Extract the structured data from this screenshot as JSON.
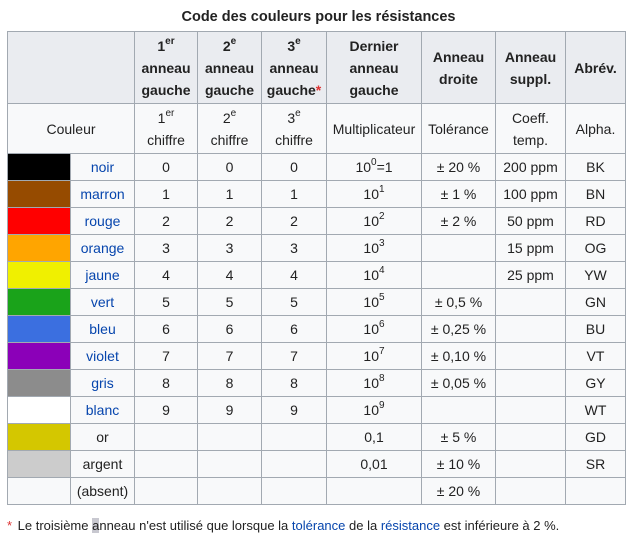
{
  "caption": "Code des couleurs pour les résistances",
  "header": {
    "col1": {
      "num": "1",
      "sup": "er",
      "rest1": "anneau",
      "rest2": "gauche"
    },
    "col2": {
      "num": "2",
      "sup": "e",
      "rest1": "anneau",
      "rest2": "gauche"
    },
    "col3": {
      "num": "3",
      "sup": "e",
      "rest1": "anneau",
      "rest2": "gauche",
      "star": "*"
    },
    "col4": {
      "l1": "Dernier",
      "l2": "anneau",
      "l3": "gauche"
    },
    "col5": {
      "l1": "Anneau",
      "l2": "droite"
    },
    "col6": {
      "l1": "Anneau",
      "l2": "suppl."
    },
    "col7": "Abrév."
  },
  "subheader": {
    "couleur": "Couleur",
    "c1": {
      "num": "1",
      "sup": "er",
      "rest": "chiffre"
    },
    "c2": {
      "num": "2",
      "sup": "e",
      "rest": "chiffre"
    },
    "c3": {
      "num": "3",
      "sup": "e",
      "rest": "chiffre"
    },
    "c4": "Multiplicateur",
    "c5": "Tolérance",
    "c6a": "Coeff.",
    "c6b": "temp.",
    "c7": "Alpha."
  },
  "rows": [
    {
      "swatch": "#000000",
      "name": "noir",
      "link": true,
      "d1": "0",
      "d2": "0",
      "d3": "0",
      "mult_base": "10",
      "mult_exp": "0",
      "mult_suffix": "=1",
      "tol": "± 20 %",
      "temp": "200 ppm",
      "abbr": "BK"
    },
    {
      "swatch": "#964b00",
      "name": "marron",
      "link": true,
      "d1": "1",
      "d2": "1",
      "d3": "1",
      "mult_base": "10",
      "mult_exp": "1",
      "mult_suffix": "",
      "tol": "± 1 %",
      "temp": "100 ppm",
      "abbr": "BN"
    },
    {
      "swatch": "#ff0000",
      "name": "rouge",
      "link": true,
      "d1": "2",
      "d2": "2",
      "d3": "2",
      "mult_base": "10",
      "mult_exp": "2",
      "mult_suffix": "",
      "tol": "± 2 %",
      "temp": "50 ppm",
      "abbr": "RD"
    },
    {
      "swatch": "#ffa500",
      "name": "orange",
      "link": true,
      "d1": "3",
      "d2": "3",
      "d3": "3",
      "mult_base": "10",
      "mult_exp": "3",
      "mult_suffix": "",
      "tol": "",
      "temp": "15 ppm",
      "abbr": "OG"
    },
    {
      "swatch": "#f0f000",
      "name": "jaune",
      "link": true,
      "d1": "4",
      "d2": "4",
      "d3": "4",
      "mult_base": "10",
      "mult_exp": "4",
      "mult_suffix": "",
      "tol": "",
      "temp": "25 ppm",
      "abbr": "YW"
    },
    {
      "swatch": "#1aa31a",
      "name": "vert",
      "link": true,
      "d1": "5",
      "d2": "5",
      "d3": "5",
      "mult_base": "10",
      "mult_exp": "5",
      "mult_suffix": "",
      "tol": "± 0,5 %",
      "temp": "",
      "abbr": "GN"
    },
    {
      "swatch": "#3b6fe0",
      "name": "bleu",
      "link": true,
      "d1": "6",
      "d2": "6",
      "d3": "6",
      "mult_base": "10",
      "mult_exp": "6",
      "mult_suffix": "",
      "tol": "± 0,25 %",
      "temp": "",
      "abbr": "BU"
    },
    {
      "swatch": "#8b00b8",
      "name": "violet",
      "link": true,
      "d1": "7",
      "d2": "7",
      "d3": "7",
      "mult_base": "10",
      "mult_exp": "7",
      "mult_suffix": "",
      "tol": "± 0,10 %",
      "temp": "",
      "abbr": "VT"
    },
    {
      "swatch": "#8c8c8c",
      "name": "gris",
      "link": true,
      "d1": "8",
      "d2": "8",
      "d3": "8",
      "mult_base": "10",
      "mult_exp": "8",
      "mult_suffix": "",
      "tol": "± 0,05 %",
      "temp": "",
      "abbr": "GY"
    },
    {
      "swatch": "#ffffff",
      "name": "blanc",
      "link": true,
      "d1": "9",
      "d2": "9",
      "d3": "9",
      "mult_base": "10",
      "mult_exp": "9",
      "mult_suffix": "",
      "tol": "",
      "temp": "",
      "abbr": "WT"
    },
    {
      "swatch": "#d4c700",
      "name": "or",
      "link": false,
      "d1": "",
      "d2": "",
      "d3": "",
      "mult_base": "0,1",
      "mult_exp": "",
      "mult_suffix": "",
      "tol": "± 5 %",
      "temp": "",
      "abbr": "GD"
    },
    {
      "swatch": "#cccccc",
      "name": "argent",
      "link": false,
      "d1": "",
      "d2": "",
      "d3": "",
      "mult_base": "0,01",
      "mult_exp": "",
      "mult_suffix": "",
      "tol": "± 10 %",
      "temp": "",
      "abbr": "SR"
    },
    {
      "swatch": "#f8f9fa",
      "name": "(absent)",
      "link": false,
      "d1": "",
      "d2": "",
      "d3": "",
      "mult_base": "",
      "mult_exp": "",
      "mult_suffix": "",
      "tol": "± 20 %",
      "temp": "",
      "abbr": ""
    }
  ],
  "note": {
    "star": "*",
    "t1": " Le troisième ",
    "cursor_char": "a",
    "t2": "nneau n'est utilisé que lorsque la ",
    "link1": "tolérance",
    "t3": " de la ",
    "link2": "résistance",
    "t4": " est inférieure à 2 %."
  }
}
